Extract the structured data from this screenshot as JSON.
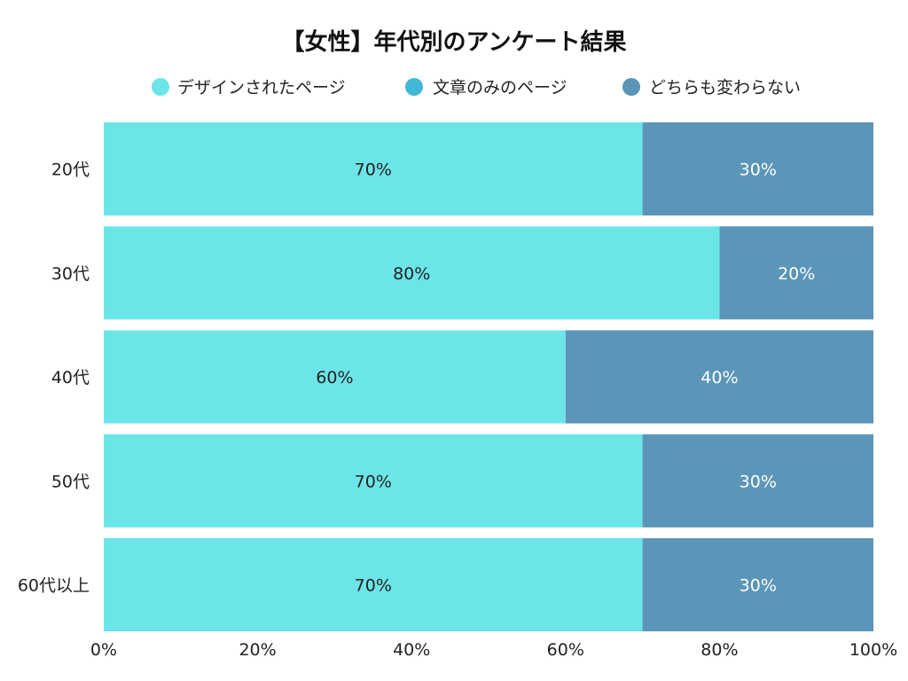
{
  "chart_data": {
    "type": "bar",
    "orientation": "horizontal",
    "stacked": true,
    "title": "【女性】年代別のアンケート結果",
    "xlabel": "",
    "ylabel": "",
    "xlim": [
      0,
      100
    ],
    "x_ticks": [
      "0%",
      "20%",
      "40%",
      "60%",
      "80%",
      "100%"
    ],
    "grid": false,
    "legend_position": "top",
    "categories": [
      "20代",
      "30代",
      "40代",
      "50代",
      "60代以上"
    ],
    "series": [
      {
        "name": "デザインされたページ",
        "color": "#6ce5e8",
        "label_color": "#222222",
        "values": [
          70,
          80,
          60,
          70,
          70
        ]
      },
      {
        "name": "文章のみのページ",
        "color": "#41b8d5",
        "label_color": "#ffffff",
        "values": [
          0,
          0,
          0,
          0,
          0
        ]
      },
      {
        "name": "どちらも変わらない",
        "color": "#5b95b8",
        "label_color": "#ffffff",
        "values": [
          30,
          20,
          40,
          30,
          30
        ]
      }
    ]
  }
}
